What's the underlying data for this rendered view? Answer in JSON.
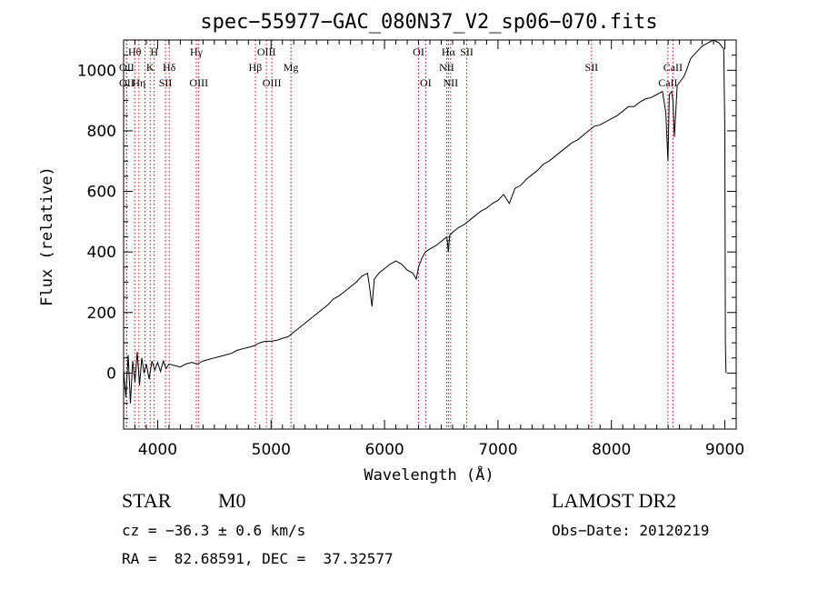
{
  "chart_data": {
    "type": "line",
    "title": "spec−55977−GAC_080N37_V2_sp06−070.fits",
    "xlabel": "Wavelength (Å)",
    "ylabel": "Flux (relative)",
    "xlim": [
      3700,
      9100
    ],
    "ylim": [
      -185,
      1100
    ],
    "x_ticks": [
      4000,
      5000,
      6000,
      7000,
      8000,
      9000
    ],
    "x_tick_labels": [
      "4000",
      "5000",
      "6000",
      "7000",
      "8000",
      "9000"
    ],
    "y_ticks": [
      0,
      200,
      400,
      600,
      800,
      1000
    ],
    "y_tick_labels": [
      "0",
      "200",
      "400",
      "600",
      "800",
      "1000"
    ],
    "grid": false,
    "legend": "none",
    "line_color": "#000000",
    "marker_color": "#c00000",
    "series": [
      {
        "x": [
          3700,
          3720,
          3740,
          3760,
          3780,
          3800,
          3820,
          3840,
          3860,
          3880,
          3900,
          3925,
          3950,
          3975,
          4000,
          4025,
          4050,
          4075,
          4100,
          4150,
          4200,
          4250,
          4300,
          4350,
          4400,
          4450,
          4500,
          4550,
          4600,
          4650,
          4700,
          4750,
          4800,
          4850,
          4900,
          4950,
          5000,
          5050,
          5100,
          5150,
          5200,
          5250,
          5300,
          5350,
          5400,
          5450,
          5500,
          5550,
          5600,
          5650,
          5700,
          5750,
          5800,
          5850,
          5870,
          5890,
          5910,
          5950,
          6000,
          6050,
          6100,
          6150,
          6200,
          6250,
          6280,
          6300,
          6330,
          6360,
          6400,
          6450,
          6500,
          6550,
          6563,
          6575,
          6600,
          6650,
          6700,
          6750,
          6800,
          6850,
          6900,
          6950,
          7000,
          7050,
          7100,
          7150,
          7200,
          7250,
          7300,
          7350,
          7400,
          7450,
          7500,
          7550,
          7600,
          7650,
          7700,
          7750,
          7800,
          7850,
          7900,
          7950,
          8000,
          8050,
          8100,
          8150,
          8200,
          8250,
          8300,
          8350,
          8400,
          8450,
          8480,
          8498,
          8510,
          8530,
          8542,
          8555,
          8580,
          8610,
          8640,
          8662,
          8680,
          8700,
          8750,
          8800,
          8850,
          8900,
          8950,
          8990,
          9000,
          9005,
          9010
        ],
        "y": [
          10,
          -80,
          60,
          -100,
          40,
          -30,
          70,
          -40,
          50,
          0,
          30,
          -20,
          40,
          10,
          35,
          5,
          40,
          15,
          30,
          25,
          20,
          30,
          35,
          30,
          40,
          45,
          50,
          55,
          60,
          65,
          75,
          80,
          85,
          90,
          100,
          105,
          105,
          108,
          115,
          120,
          135,
          150,
          165,
          180,
          195,
          210,
          225,
          245,
          255,
          270,
          285,
          300,
          320,
          330,
          280,
          220,
          310,
          330,
          345,
          360,
          370,
          360,
          340,
          330,
          310,
          350,
          380,
          400,
          410,
          420,
          435,
          450,
          400,
          455,
          465,
          480,
          490,
          505,
          520,
          535,
          545,
          560,
          570,
          590,
          560,
          610,
          620,
          640,
          655,
          670,
          690,
          700,
          715,
          730,
          745,
          760,
          770,
          785,
          800,
          815,
          820,
          830,
          840,
          850,
          865,
          880,
          880,
          895,
          905,
          910,
          920,
          930,
          860,
          700,
          920,
          930,
          900,
          780,
          950,
          965,
          980,
          1000,
          1020,
          1040,
          1060,
          1080,
          1090,
          1100,
          1090,
          1070,
          800,
          100,
          0
        ]
      }
    ],
    "line_markers": [
      {
        "wavelength": 3798,
        "row": 1,
        "label": "Hθ"
      },
      {
        "wavelength": 3727,
        "row": 2,
        "label": "OII"
      },
      {
        "wavelength": 3727,
        "row": 3,
        "label": "OII"
      },
      {
        "wavelength": 3835,
        "row": 3,
        "label": "Hη"
      },
      {
        "wavelength": 3889,
        "row": 3,
        "label": ""
      },
      {
        "wavelength": 3970,
        "row": 1,
        "label": "H"
      },
      {
        "wavelength": 3934,
        "row": 2,
        "label": "K"
      },
      {
        "wavelength": 4102,
        "row": 2,
        "label": "Hδ"
      },
      {
        "wavelength": 4069,
        "row": 3,
        "label": "SII"
      },
      {
        "wavelength": 4341,
        "row": 1,
        "label": "Hγ"
      },
      {
        "wavelength": 4363,
        "row": 3,
        "label": "OIII"
      },
      {
        "wavelength": 4959,
        "row": 1,
        "label": "OIII"
      },
      {
        "wavelength": 4861,
        "row": 2,
        "label": "Hβ"
      },
      {
        "wavelength": 5007,
        "row": 3,
        "label": "OIII"
      },
      {
        "wavelength": 5175,
        "row": 2,
        "label": "Mg"
      },
      {
        "wavelength": 6300,
        "row": 1,
        "label": "OI"
      },
      {
        "wavelength": 6363,
        "row": 3,
        "label": "OI"
      },
      {
        "wavelength": 6563,
        "row": 1,
        "label": "Hα"
      },
      {
        "wavelength": 6548,
        "row": 2,
        "label": "NII"
      },
      {
        "wavelength": 6583,
        "row": 3,
        "label": "NII"
      },
      {
        "wavelength": 6725,
        "row": 1,
        "label": "SII"
      },
      {
        "wavelength": 7825,
        "row": 2,
        "label": "SII"
      },
      {
        "wavelength": 8542,
        "row": 2,
        "label": "CaII"
      },
      {
        "wavelength": 8498,
        "row": 3,
        "label": "CaII"
      }
    ]
  },
  "info": {
    "object_class": "STAR",
    "subclass": "M0",
    "survey": "LAMOST DR2",
    "redshift": "cz = −36.3 ± 0.6 km/s",
    "obs_date": "Obs−Date: 20120219",
    "coordinates": "RA =  82.68591, DEC =  37.32577"
  }
}
